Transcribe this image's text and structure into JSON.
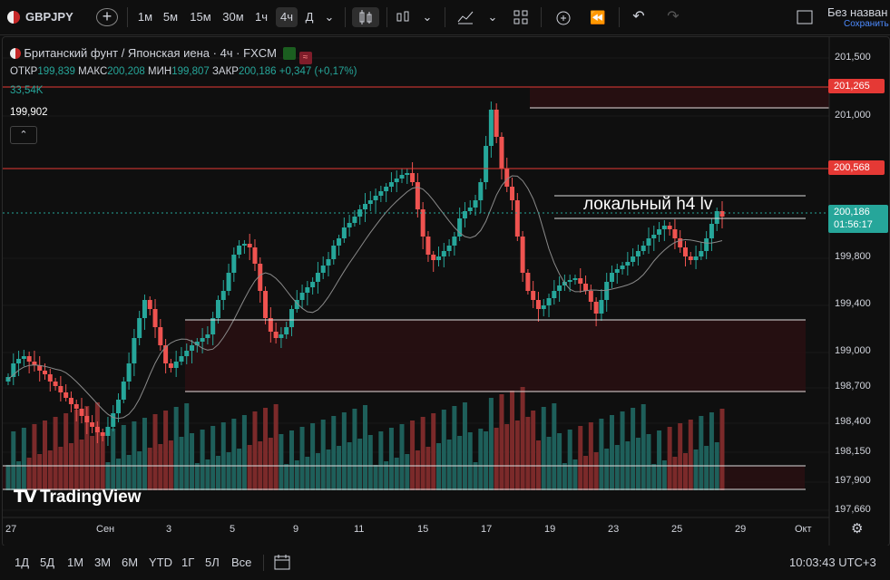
{
  "toolbar": {
    "symbol": "GBPJPY",
    "intervals": [
      "1м",
      "5м",
      "15м",
      "30м",
      "1ч",
      "4ч",
      "Д"
    ],
    "active_interval": "4ч",
    "layout_name": "Без назван",
    "save_status": "Сохранить"
  },
  "legend": {
    "title": "Британский фунт / Японская иена · 4ч · FXCM",
    "open_label": "ОТКР",
    "open": "199,839",
    "high_label": "МАКС",
    "high": "200,208",
    "low_label": "МИН",
    "low": "199,807",
    "close_label": "ЗАКР",
    "close": "200,186",
    "change": "+0,347 (+0,17%)",
    "volume": "33,54K",
    "ma_value": "199,902"
  },
  "annotation_text": "локальный h4 lv",
  "price_axis": {
    "ticks": [
      "201,500",
      "201,000",
      "199,800",
      "199,400",
      "199,000",
      "198,700",
      "198,400",
      "198,150",
      "197,900",
      "197,660"
    ],
    "tags": {
      "red_top": "201,265",
      "red_mid": "200,568",
      "current": "200,186",
      "countdown": "01:56:17"
    }
  },
  "time_axis": {
    "ticks": [
      "27",
      "Сен",
      "3",
      "5",
      "9",
      "11",
      "15",
      "17",
      "19",
      "23",
      "25",
      "29",
      "Окт"
    ]
  },
  "bottombar": {
    "ranges": [
      "1Д",
      "5Д",
      "1М",
      "3М",
      "6М",
      "YTD",
      "1Г",
      "5Л",
      "Все"
    ],
    "clock": "10:03:43 UTC+3"
  },
  "watermark": "TradingView",
  "colors": {
    "up": "#26a69a",
    "down": "#ef5350",
    "redline": "#e53935",
    "vol_up": "#1e5f5a",
    "vol_down": "#7b2a2a"
  },
  "chart_data": {
    "type": "candlestick",
    "symbol": "GBPJPY",
    "interval": "4h",
    "levels": [
      201.265,
      200.568
    ],
    "last": {
      "open": 199.839,
      "high": 200.208,
      "low": 199.807,
      "close": 200.186
    }
  }
}
